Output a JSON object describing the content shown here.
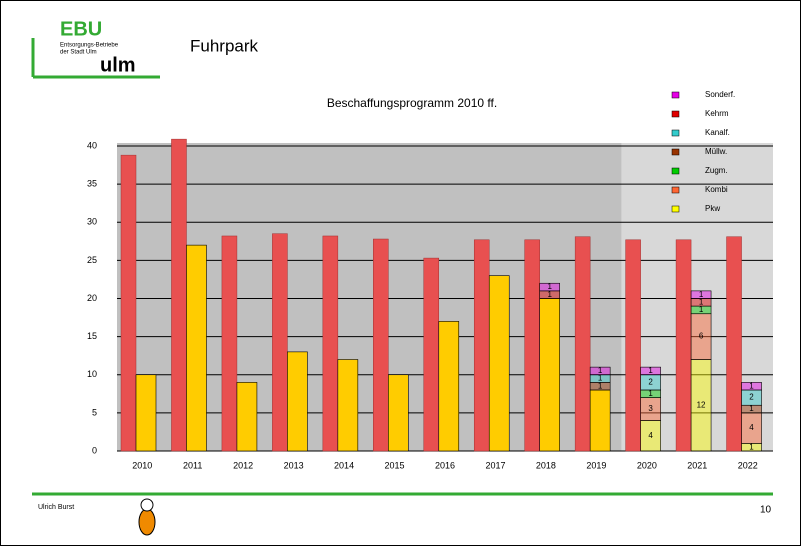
{
  "header": {
    "logo_top": "EBU",
    "logo_sub1": "Entsorgungs-Betriebe",
    "logo_sub2": "der Stadt Ulm",
    "logo_bottom": "ulm",
    "title": "Fuhrpark"
  },
  "footer": {
    "author": "Ulrich Burst",
    "page": "10"
  },
  "chart_data": {
    "type": "bar",
    "title": "Beschaffungsprogramm 2010 ff.",
    "categories": [
      "2010",
      "2011",
      "2012",
      "2013",
      "2014",
      "2015",
      "2016",
      "2017",
      "2018",
      "2019",
      "2020",
      "2021",
      "2022"
    ],
    "ylim": [
      0,
      40
    ],
    "yticks": [
      0,
      5,
      10,
      15,
      20,
      25,
      30,
      35,
      40
    ],
    "grid": true,
    "legend": "top-right",
    "series": [
      {
        "color": "#e85050",
        "values": [
          38.8,
          40.9,
          28.2,
          28.5,
          28.2,
          27.8,
          25.3,
          27.7,
          27.7,
          28.1,
          27.7,
          27.7,
          28.1
        ]
      },
      {
        "color": "#ffcc00",
        "values": [
          10,
          27,
          9,
          13,
          12,
          10,
          17,
          23,
          20,
          8,
          null,
          null,
          null
        ]
      },
      {
        "name": "Pkw",
        "color": "#ffff00",
        "values": [
          null,
          null,
          null,
          null,
          null,
          null,
          null,
          null,
          null,
          null,
          4,
          12,
          1
        ]
      },
      {
        "name": "Kombi",
        "color": "#ff6633",
        "values": [
          null,
          null,
          null,
          null,
          null,
          null,
          null,
          null,
          null,
          null,
          3,
          6,
          4
        ]
      },
      {
        "name": "Zugm.",
        "color": "#00cc00",
        "values": [
          null,
          null,
          null,
          null,
          null,
          null,
          null,
          null,
          null,
          null,
          1,
          1,
          null
        ]
      },
      {
        "name": "Müllw.",
        "color": "#993300",
        "values": [
          null,
          null,
          null,
          null,
          null,
          null,
          null,
          null,
          null,
          1,
          null,
          null,
          1
        ]
      },
      {
        "name": "Kanalf.",
        "color": "#33cccc",
        "values": [
          null,
          null,
          null,
          null,
          null,
          null,
          null,
          null,
          null,
          1,
          2,
          null,
          2
        ]
      },
      {
        "name": "Kehrm",
        "color": "#e00000",
        "values": [
          null,
          null,
          null,
          null,
          null,
          null,
          null,
          null,
          1,
          null,
          null,
          1,
          null
        ]
      },
      {
        "name": "Sonderf.",
        "color": "#e600e6",
        "values": [
          null,
          null,
          null,
          null,
          null,
          null,
          null,
          null,
          1,
          1,
          1,
          1,
          1
        ]
      }
    ]
  }
}
